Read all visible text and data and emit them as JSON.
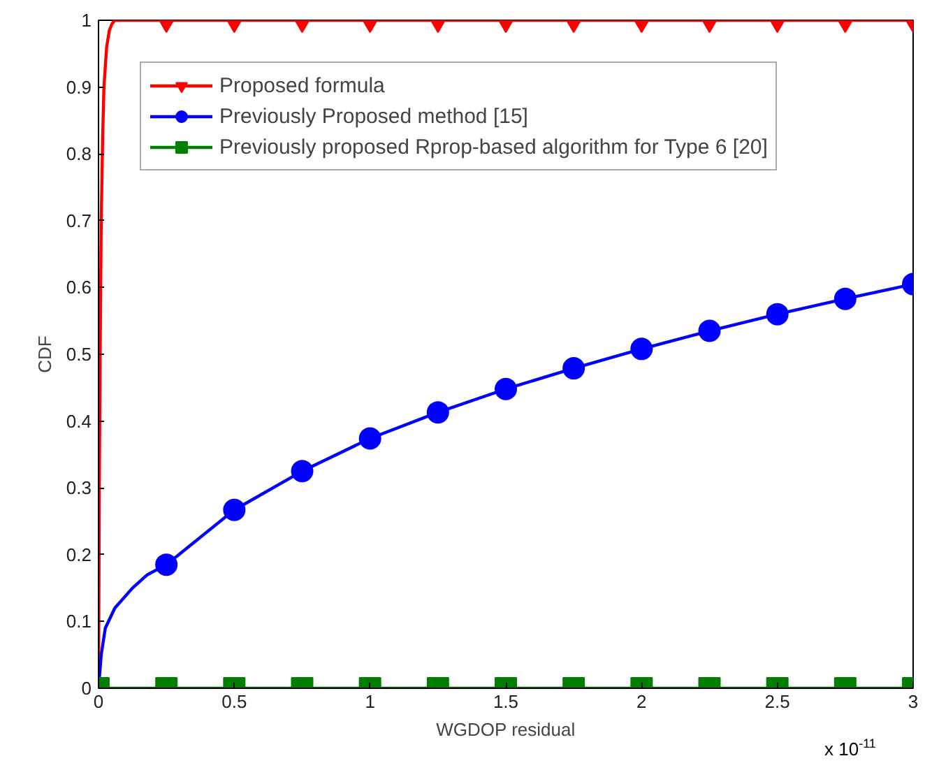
{
  "chart_data": {
    "type": "line",
    "xlabel": "WGDOP residual",
    "ylabel": "CDF",
    "annotations": [
      "x 10$^{-11}$"
    ],
    "xlim": [
      0,
      3
    ],
    "ylim": [
      0,
      1
    ],
    "xticks": [
      0,
      0.5,
      1,
      1.5,
      2,
      2.5,
      3
    ],
    "yticks": [
      0,
      0.1,
      0.2,
      0.3,
      0.4,
      0.5,
      0.6,
      0.7,
      0.8,
      0.9,
      1
    ],
    "grid": false,
    "legend": "top left",
    "series": [
      {
        "name": "Proposed formula",
        "color": "#ff0000",
        "marker": "none",
        "x": [
          0,
          0.003,
          0.006,
          0.01,
          0.015,
          0.02,
          0.03,
          0.04,
          0.05,
          0.06,
          0.25,
          0.5,
          0.75,
          1,
          1.25,
          1.5,
          1.75,
          2,
          2.25,
          2.5,
          2.75,
          3
        ],
        "values": [
          0,
          0.3,
          0.5,
          0.7,
          0.82,
          0.9,
          0.96,
          0.985,
          0.995,
          1,
          1,
          1,
          1,
          1,
          1,
          1,
          1,
          1,
          1,
          1,
          1,
          1
        ]
      },
      {
        "name": "Previously Proposed method [15]",
        "color": "#0000ff",
        "marker": "none",
        "x": [
          0,
          0.01,
          0.025,
          0.06,
          0.125,
          0.18,
          0.25,
          0.5,
          0.75,
          1,
          1.25,
          1.5,
          1.75,
          2,
          2.25,
          2.5,
          2.75,
          3
        ],
        "values": [
          0,
          0.05,
          0.09,
          0.12,
          0.15,
          0.17,
          0.185,
          0.267,
          0.325,
          0.374,
          0.413,
          0.448,
          0.479,
          0.508,
          0.535,
          0.56,
          0.583,
          0.605
        ]
      },
      {
        "name": "Previously proposed Rprop-based algorithm for Type 6 [20]",
        "color": "#007f00",
        "marker": "none",
        "x": [
          0,
          3
        ],
        "values": [
          0,
          0
        ]
      },
      {
        "color": "#ff0000",
        "type": "scatter",
        "marker": "triangle",
        "x": [
          0.25,
          0.5,
          0.75,
          1,
          1.25,
          1.5,
          1.75,
          2,
          2.25,
          2.5,
          2.75,
          3
        ],
        "values": [
          1,
          1,
          1,
          1,
          1,
          1,
          1,
          1,
          1,
          1,
          1,
          1
        ]
      },
      {
        "color": "#0000ff",
        "type": "scatter",
        "marker": "circle",
        "x": [
          0.25,
          0.5,
          0.75,
          1,
          1.25,
          1.5,
          1.75,
          2,
          2.25,
          2.5,
          2.75,
          3
        ],
        "values": [
          0.185,
          0.267,
          0.325,
          0.374,
          0.413,
          0.448,
          0.479,
          0.508,
          0.535,
          0.56,
          0.583,
          0.605
        ]
      },
      {
        "color": "#007f00",
        "type": "scatter",
        "marker": "square",
        "x": [
          0,
          0.25,
          0.5,
          0.75,
          1,
          1.25,
          1.5,
          1.75,
          2,
          2.25,
          2.5,
          2.75,
          3
        ],
        "values": [
          0,
          0,
          0,
          0,
          0,
          0,
          0,
          0,
          0,
          0,
          0,
          0,
          0
        ]
      }
    ]
  }
}
